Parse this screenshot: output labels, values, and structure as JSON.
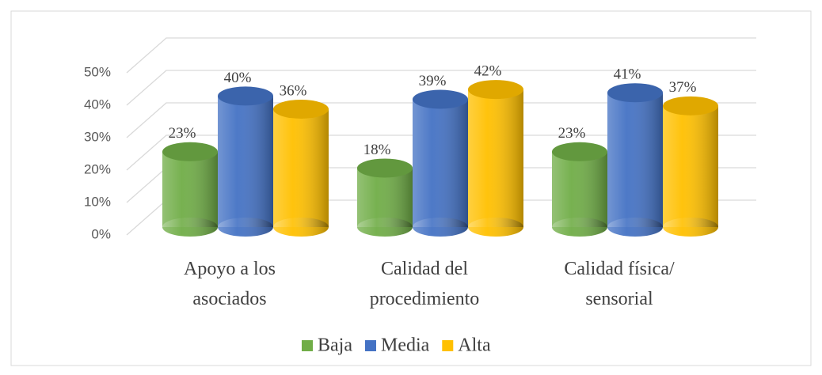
{
  "chart_data": {
    "type": "bar3d",
    "categories": [
      "Apoyo a los asociados",
      "Calidad del procedimiento",
      "Calidad física/ sensorial"
    ],
    "series": [
      {
        "name": "Baja",
        "color": "#70ad47",
        "values": [
          23,
          18,
          23
        ],
        "value_labels": [
          "23%",
          "18%",
          "23%"
        ]
      },
      {
        "name": "Media",
        "color": "#4472c4",
        "values": [
          40,
          39,
          41
        ],
        "value_labels": [
          "40%",
          "39%",
          "41%"
        ]
      },
      {
        "name": "Alta",
        "color": "#ffc000",
        "values": [
          36,
          42,
          37
        ],
        "value_labels": [
          "36%",
          "42%",
          "37%"
        ]
      }
    ],
    "ylim": [
      0,
      50
    ],
    "yticks": [
      {
        "value": 0,
        "label": "0%"
      },
      {
        "value": 10,
        "label": "10%"
      },
      {
        "value": 20,
        "label": "20%"
      },
      {
        "value": 30,
        "label": "30%"
      },
      {
        "value": 40,
        "label": "40%"
      },
      {
        "value": 50,
        "label": "50%"
      }
    ],
    "grid": true,
    "legend": "bottom"
  }
}
